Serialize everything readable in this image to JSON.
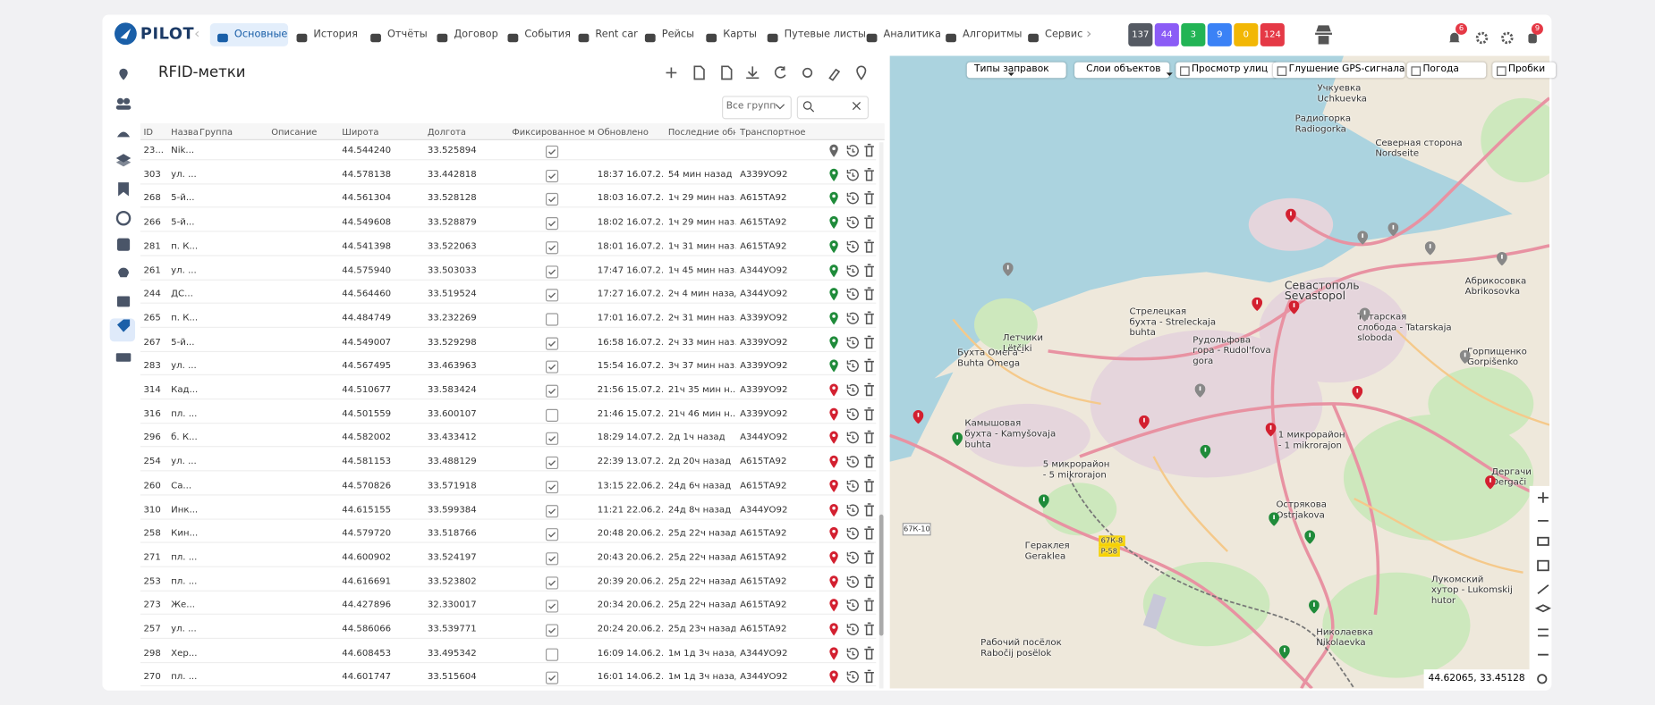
{
  "nav": {
    "logo": "PILOT",
    "tabs": [
      "Основные",
      "История",
      "Отчёты",
      "Договор",
      "События",
      "Rent car",
      "Рейсы",
      "Карты",
      "Путевые листы",
      "Аналитика",
      "Алгоритмы",
      "Сервис"
    ],
    "badges": [
      "137",
      "44",
      "3",
      "9",
      "0",
      "124"
    ],
    "bell_count": "6",
    "user_count": "9"
  },
  "panel": {
    "title": "RFID-метки",
    "group_filter": "Все групп"
  },
  "table": {
    "columns": [
      "ID",
      "Назва",
      "Группа",
      "Описание",
      "Широта",
      "Долгота",
      "Фиксированное ме",
      "Обновлено",
      "Последние обно",
      "Транспортное ср"
    ],
    "rows": [
      {
        "id": "23...",
        "name": "Nik...",
        "lat": "44.544240",
        "lon": "33.525894",
        "fixed": true,
        "pin": "gray"
      },
      {
        "id": "303",
        "name": "ул. ...",
        "lat": "44.578138",
        "lon": "33.442818",
        "fixed": true,
        "updated": "18:37 16.07.2...",
        "ago": "54 мин назад",
        "vehicle": "А339УО92",
        "pin": "green"
      },
      {
        "id": "268",
        "name": "5-й...",
        "lat": "44.561304",
        "lon": "33.528128",
        "fixed": true,
        "updated": "18:03 16.07.2...",
        "ago": "1ч 29 мин наз...",
        "vehicle": "А615ТА92",
        "pin": "green"
      },
      {
        "id": "266",
        "name": "5-й...",
        "lat": "44.549608",
        "lon": "33.528879",
        "fixed": true,
        "updated": "18:02 16.07.2...",
        "ago": "1ч 29 мин наз...",
        "vehicle": "А615ТА92",
        "pin": "green"
      },
      {
        "id": "281",
        "name": "п. К...",
        "lat": "44.541398",
        "lon": "33.522063",
        "fixed": true,
        "updated": "18:01 16.07.2...",
        "ago": "1ч 31 мин наз...",
        "vehicle": "А615ТА92",
        "pin": "green"
      },
      {
        "id": "261",
        "name": "ул. ...",
        "lat": "44.575940",
        "lon": "33.503033",
        "fixed": true,
        "updated": "17:47 16.07.2...",
        "ago": "1ч 45 мин наз...",
        "vehicle": "А344УО92",
        "pin": "green"
      },
      {
        "id": "244",
        "name": "ДС...",
        "lat": "44.564460",
        "lon": "33.519524",
        "fixed": true,
        "updated": "17:27 16.07.2...",
        "ago": "2ч 4 мин назад",
        "vehicle": "А344УО92",
        "pin": "green"
      },
      {
        "id": "265",
        "name": "п. К...",
        "lat": "44.484749",
        "lon": "33.232269",
        "fixed": false,
        "updated": "17:01 16.07.2...",
        "ago": "2ч 31 мин наз...",
        "vehicle": "А339УО92",
        "pin": "green"
      },
      {
        "id": "267",
        "name": "5-й...",
        "lat": "44.549007",
        "lon": "33.529298",
        "fixed": true,
        "updated": "16:58 16.07.2...",
        "ago": "2ч 33 мин наз...",
        "vehicle": "А339УО92",
        "pin": "green"
      },
      {
        "id": "283",
        "name": "ул. ...",
        "lat": "44.567495",
        "lon": "33.463963",
        "fixed": true,
        "updated": "15:54 16.07.2...",
        "ago": "3ч 37 мин наз...",
        "vehicle": "А339УО92",
        "pin": "green"
      },
      {
        "id": "314",
        "name": "Кад...",
        "lat": "44.510677",
        "lon": "33.583424",
        "fixed": true,
        "updated": "21:56 15.07.2...",
        "ago": "21ч 35 мин н...",
        "vehicle": "А339УО92",
        "pin": "red"
      },
      {
        "id": "316",
        "name": "пл. ...",
        "lat": "44.501559",
        "lon": "33.600107",
        "fixed": false,
        "updated": "21:46 15.07.2...",
        "ago": "21ч 46 мин н...",
        "vehicle": "А339УО92",
        "pin": "red"
      },
      {
        "id": "296",
        "name": "б. К...",
        "lat": "44.582002",
        "lon": "33.433412",
        "fixed": true,
        "updated": "18:29 14.07.2...",
        "ago": "2д 1ч назад",
        "vehicle": "А344УО92",
        "pin": "red"
      },
      {
        "id": "254",
        "name": "ул. ...",
        "lat": "44.581153",
        "lon": "33.488129",
        "fixed": true,
        "updated": "22:39 13.07.2...",
        "ago": "2д 20ч назад",
        "vehicle": "А615ТА92",
        "pin": "red"
      },
      {
        "id": "260",
        "name": "Са...",
        "lat": "44.570826",
        "lon": "33.571918",
        "fixed": true,
        "updated": "13:15 22.06.2...",
        "ago": "24д 6ч назад",
        "vehicle": "А615ТА92",
        "pin": "red"
      },
      {
        "id": "310",
        "name": "Инк...",
        "lat": "44.615155",
        "lon": "33.599384",
        "fixed": true,
        "updated": "11:21 22.06.2...",
        "ago": "24д 8ч назад",
        "vehicle": "А344УО92",
        "pin": "red"
      },
      {
        "id": "258",
        "name": "Кин...",
        "lat": "44.579720",
        "lon": "33.518766",
        "fixed": true,
        "updated": "20:48 20.06.2...",
        "ago": "25д 22ч назад",
        "vehicle": "А615ТА92",
        "pin": "red"
      },
      {
        "id": "271",
        "name": "пл. ...",
        "lat": "44.600902",
        "lon": "33.524197",
        "fixed": true,
        "updated": "20:43 20.06.2...",
        "ago": "25д 22ч назад",
        "vehicle": "А615ТА92",
        "pin": "red"
      },
      {
        "id": "253",
        "name": "пл. ...",
        "lat": "44.616691",
        "lon": "33.523802",
        "fixed": true,
        "updated": "20:39 20.06.2...",
        "ago": "25д 22ч назад",
        "vehicle": "А615ТА92",
        "pin": "red"
      },
      {
        "id": "273",
        "name": "Же...",
        "lat": "44.427896",
        "lon": "32.330017",
        "fixed": true,
        "updated": "20:34 20.06.2...",
        "ago": "25д 22ч назад",
        "vehicle": "А615ТА92",
        "pin": "red"
      },
      {
        "id": "257",
        "name": "ул. ...",
        "lat": "44.586066",
        "lon": "33.539771",
        "fixed": true,
        "updated": "20:24 20.06.2...",
        "ago": "25д 23ч назад",
        "vehicle": "А615ТА92",
        "pin": "red"
      },
      {
        "id": "298",
        "name": "Хер...",
        "lat": "44.608453",
        "lon": "33.495342",
        "fixed": false,
        "updated": "16:09 14.06.2...",
        "ago": "1м 1д 3ч назад",
        "vehicle": "А344УО92",
        "pin": "red"
      },
      {
        "id": "270",
        "name": "пл. ...",
        "lat": "44.601747",
        "lon": "33.515604",
        "fixed": true,
        "updated": "16:01 14.06.2...",
        "ago": "1м 1д 3ч назад",
        "vehicle": "А344УО92",
        "pin": "red"
      }
    ]
  },
  "map": {
    "fuel_types": "Типы заправок",
    "object_layers": "Слои объектов",
    "toggles": [
      "Просмотр улиц",
      "Глушение GPS-сигнала",
      "Погода",
      "Пробки"
    ],
    "coords": "44.62065, 33.45128",
    "labels": [
      [
        "Учкуевка",
        "Uchkuevka"
      ],
      [
        "Радиогорка",
        "Radiogorka"
      ],
      [
        "Северная сторона",
        "Nordseite"
      ],
      [
        "Севастополь",
        "Sevastopol"
      ],
      [
        "Стрелецкая",
        "бухта - Streleckaja",
        "buhta"
      ],
      [
        "Рудольфова",
        "гора - Rudol'fova",
        "gora"
      ],
      [
        "Татарская",
        "слобода - Tatarskaja",
        "sloboda"
      ],
      [
        "Бухта Омега -",
        "Buhta Omega"
      ],
      [
        "Летчики",
        "Lëtčiki"
      ],
      [
        "Абрикосовка",
        "Abrikosovka"
      ],
      [
        "Горпищенко",
        "Gorpišenko"
      ],
      [
        "Камышовая",
        "бухта - Kamyšovaja",
        "buhta"
      ],
      [
        "5 микрорайон",
        "- 5 mikrorajon"
      ],
      [
        "1 микрорайон",
        "- 1 mikrorajon"
      ],
      [
        "Острякова",
        "Ostrjakova"
      ],
      [
        "Гераклея",
        "Geraklea"
      ],
      [
        "Рабочий посёлок",
        "Rabočij posëlok"
      ],
      [
        "Лукомский",
        "хутор - Lukomskij",
        "hutor"
      ],
      [
        "Николаевка",
        "Nikolaevka"
      ],
      [
        "Дергачи",
        "Dergači"
      ],
      [
        "67К-8",
        "Р-58"
      ],
      [
        "67К-10"
      ]
    ]
  }
}
